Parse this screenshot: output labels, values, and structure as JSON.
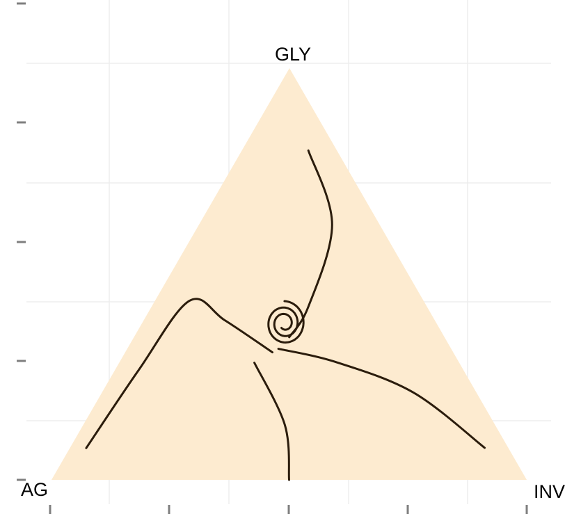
{
  "chart_data": {
    "type": "ternary",
    "vertices": [
      "AG",
      "GLY",
      "INV"
    ],
    "colors": {
      "simplex_fill": "#fdebd0",
      "trajectory": "#2b1c0c",
      "grid": "#ededed",
      "ticks": "#7f7f7f"
    },
    "grid": true,
    "legend": "none",
    "trajectories": [
      {
        "points": [
          {
            "AG": 0.955,
            "GLY": 0.083,
            "INV": 0.037
          },
          {
            "AG": 0.82,
            "GLY": 0.32,
            "INV": 0.06
          },
          {
            "AG": 0.68,
            "GLY": 0.6,
            "INV": 0.1
          },
          {
            "AG": 0.57,
            "GLY": 0.5,
            "INV": 0.22
          },
          {
            "AG": 0.43,
            "GLY": 0.35,
            "INV": 0.35
          }
        ]
      },
      {
        "points": [
          {
            "AG": 0.053,
            "GLY": 0.083,
            "INV": 0.93
          },
          {
            "AG": 0.15,
            "GLY": 0.24,
            "INV": 0.74
          },
          {
            "AG": 0.3,
            "GLY": 0.33,
            "INV": 0.52
          },
          {
            "AG": 0.4,
            "GLY": 0.35,
            "INV": 0.35
          }
        ]
      },
      {
        "points": [
          {
            "AG": 0.5,
            "GLY": 0.0,
            "INV": 0.5
          },
          {
            "AG": 0.5,
            "GLY": 0.15,
            "INV": 0.48
          },
          {
            "AG": 0.5,
            "GLY": 0.33,
            "INV": 0.33
          }
        ]
      },
      {
        "points": [
          {
            "AG": 0.06,
            "GLY": 0.8,
            "INV": 0.14
          },
          {
            "AG": 0.1,
            "GLY": 0.62,
            "INV": 0.28
          },
          {
            "AG": 0.25,
            "GLY": 0.42,
            "INV": 0.33
          },
          {
            "AG": 0.33,
            "GLY": 0.35,
            "INV": 0.33
          }
        ]
      },
      {
        "type": "spiral",
        "center": {
          "AG": 0.32,
          "GLY": 0.38,
          "INV": 0.3
        }
      }
    ]
  }
}
